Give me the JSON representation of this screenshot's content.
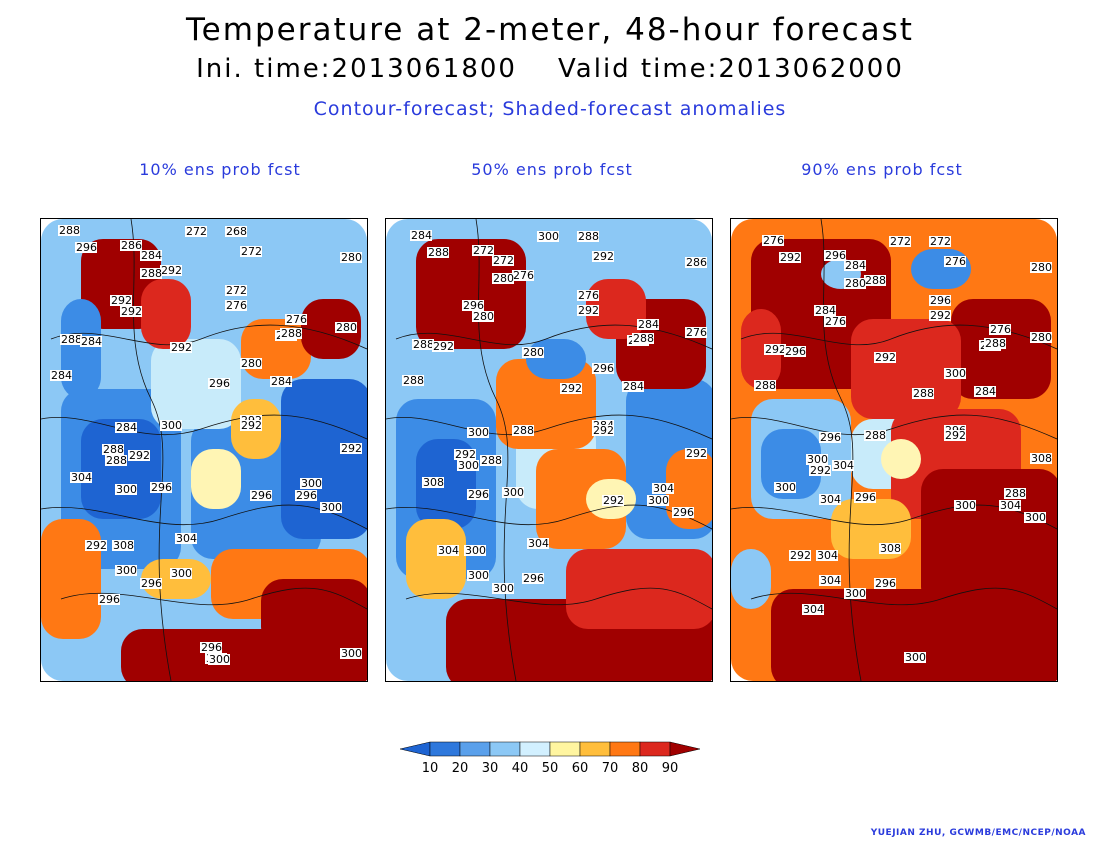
{
  "title": "Temperature at 2-meter, 48-hour forecast",
  "subtitle_time": "Ini. time:2013061800    Valid time:2013062000",
  "subtitle_desc": "Contour-forecast; Shaded-forecast anomalies",
  "credit": "YUEJIAN ZHU, GCWMB/EMC/NCEP/NOAA",
  "colors": {
    "deep_blue": "#1e64d2",
    "blue": "#3c8ce6",
    "light_blue": "#8cc8f5",
    "pale_blue": "#c8ebfa",
    "pale_yellow": "#fff5b4",
    "light_orange": "#ffbe3c",
    "orange": "#ff7814",
    "red": "#dc281e",
    "dark_red": "#a00000"
  },
  "colorbar": {
    "ticks": [
      "10",
      "20",
      "30",
      "40",
      "50",
      "60",
      "70",
      "80",
      "90"
    ],
    "swatches": [
      "#1e64d2",
      "#2e78dc",
      "#5aa0eb",
      "#8cc8f5",
      "#d2f0ff",
      "#fff5a0",
      "#ffbe3c",
      "#ff7814",
      "#dc281e",
      "#a00000"
    ]
  },
  "panels": [
    {
      "title": "10% ens prob fcst",
      "labels": [
        "288",
        "296",
        "272",
        "268",
        "272",
        "280",
        "286",
        "284",
        "292",
        "288",
        "272",
        "276",
        "292",
        "292",
        "276",
        "276",
        "280",
        "288",
        "288",
        "292",
        "284",
        "284",
        "280",
        "284",
        "296",
        "292",
        "292",
        "300",
        "284",
        "288",
        "292",
        "288",
        "296",
        "292",
        "304",
        "300",
        "300",
        "296",
        "296",
        "292",
        "300",
        "308",
        "304",
        "300",
        "296",
        "300",
        "296",
        "296",
        "300",
        "300",
        "300"
      ]
    },
    {
      "title": "50% ens prob fcst",
      "labels": [
        "284",
        "288",
        "300",
        "288",
        "292",
        "286",
        "272",
        "272",
        "276",
        "280",
        "276",
        "292",
        "296",
        "280",
        "284",
        "284",
        "276",
        "288",
        "288",
        "280",
        "292",
        "288",
        "296",
        "284",
        "292",
        "284",
        "292",
        "288",
        "300",
        "292",
        "288",
        "300",
        "300",
        "292",
        "308",
        "296",
        "304",
        "300",
        "292",
        "304",
        "296",
        "300",
        "304",
        "300",
        "300",
        "296"
      ]
    },
    {
      "title": "90% ens prob fcst",
      "labels": [
        "276",
        "292",
        "272",
        "272",
        "276",
        "280",
        "296",
        "284",
        "288",
        "280",
        "296",
        "292",
        "284",
        "276",
        "276",
        "280",
        "280",
        "288",
        "292",
        "292",
        "296",
        "288",
        "300",
        "284",
        "288",
        "296",
        "292",
        "288",
        "296",
        "300",
        "304",
        "292",
        "296",
        "308",
        "300",
        "304",
        "288",
        "304",
        "300",
        "292",
        "300",
        "304",
        "308",
        "304",
        "300",
        "296",
        "304",
        "300"
      ]
    }
  ]
}
